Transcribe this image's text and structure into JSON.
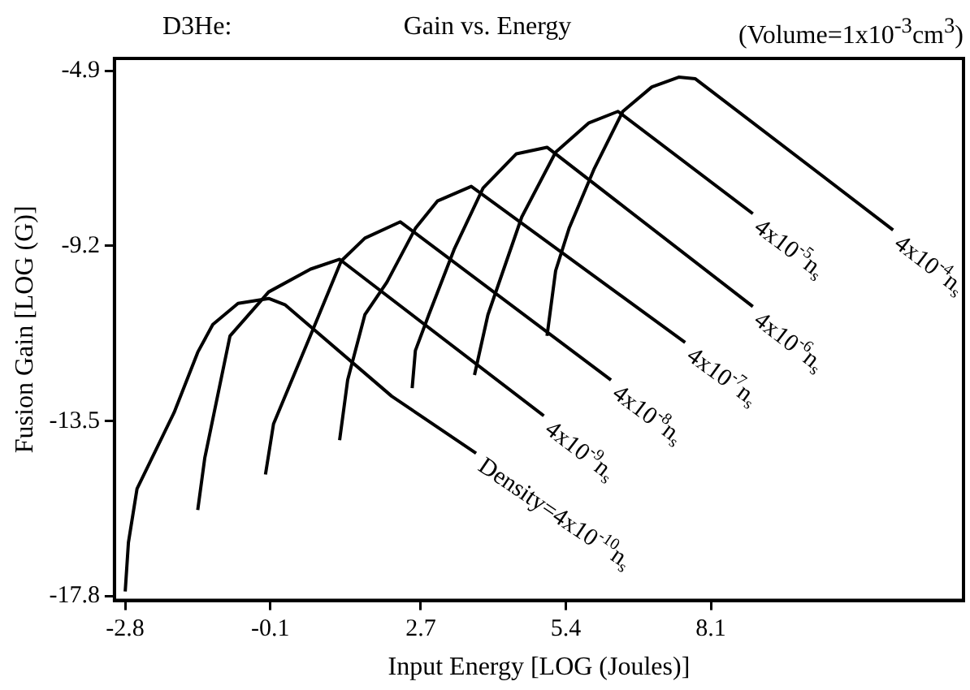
{
  "chart_data": {
    "type": "line",
    "title": "Gain vs. Energy",
    "xlabel": "Input Energy [LOG (Joules)]",
    "ylabel": "Fusion Gain [LOG (G)]",
    "annotations": [
      "D3He:",
      "(Volume=1x10$^{-3}$cm$^{3}$)"
    ],
    "xlim": [
      -3.0,
      12.8
    ],
    "ylim": [
      -17.9,
      -4.6
    ],
    "xticks": [
      -2.8,
      -0.1,
      2.7,
      5.4,
      8.1
    ],
    "yticks": [
      -4.9,
      -9.2,
      -13.5,
      -17.8
    ],
    "grid": false,
    "legend": false,
    "marker": "none",
    "line_style": "solid",
    "series": [
      {
        "name": "Density=4x10$^{-10}$n$_{s}$",
        "color": "#000000",
        "x": [
          -2.8,
          -2.74,
          -2.58,
          -1.89,
          -1.45,
          -1.17,
          -0.7,
          -0.13,
          0.18,
          2.16,
          3.73
        ],
        "values": [
          -17.68,
          -16.48,
          -15.16,
          -13.29,
          -11.81,
          -11.13,
          -10.61,
          -10.49,
          -10.65,
          -12.89,
          -14.29
        ]
      },
      {
        "name": "4x10$^{-9}$n$_{s}$",
        "color": "#000000",
        "x": [
          -1.45,
          -1.32,
          -0.85,
          -0.13,
          0.65,
          1.19,
          4.99
        ],
        "values": [
          -15.68,
          -14.41,
          -11.41,
          -10.33,
          -9.77,
          -9.53,
          -13.37
        ]
      },
      {
        "name": "4x10$^{-8}$n$_{s}$",
        "color": "#000000",
        "x": [
          -0.19,
          -0.04,
          0.34,
          0.72,
          1.22,
          1.66,
          2.32,
          6.24
        ],
        "values": [
          -14.81,
          -13.57,
          -12.37,
          -11.17,
          -9.57,
          -9.01,
          -8.61,
          -12.49
        ]
      },
      {
        "name": "4x10$^{-7}$n$_{s}$",
        "color": "#000000",
        "x": [
          1.19,
          1.34,
          1.66,
          2.07,
          2.6,
          3.01,
          3.64,
          7.62
        ],
        "values": [
          -13.97,
          -12.49,
          -10.89,
          -10.09,
          -8.77,
          -8.1,
          -7.74,
          -11.57
        ]
      },
      {
        "name": "4x10$^{-6}$n$_{s}$",
        "color": "#000000",
        "x": [
          2.54,
          2.6,
          2.85,
          3.32,
          3.86,
          4.48,
          5.05,
          8.88
        ],
        "values": [
          -12.69,
          -11.77,
          -10.89,
          -9.29,
          -7.78,
          -6.94,
          -6.78,
          -10.69
        ]
      },
      {
        "name": "4x10$^{-5}$n$_{s}$",
        "color": "#000000",
        "x": [
          3.7,
          3.95,
          4.58,
          5.21,
          5.83,
          6.37,
          8.88
        ],
        "values": [
          -12.37,
          -10.89,
          -8.49,
          -6.9,
          -6.18,
          -5.9,
          -8.41
        ]
      },
      {
        "name": "4x10$^{-4}$n$_{s}$",
        "color": "#000000",
        "x": [
          5.05,
          5.21,
          5.46,
          5.93,
          6.46,
          7.0,
          7.5,
          7.81,
          11.49
        ],
        "values": [
          -11.41,
          -9.81,
          -8.77,
          -7.3,
          -5.9,
          -5.3,
          -5.06,
          -5.1,
          -8.81
        ]
      }
    ]
  }
}
